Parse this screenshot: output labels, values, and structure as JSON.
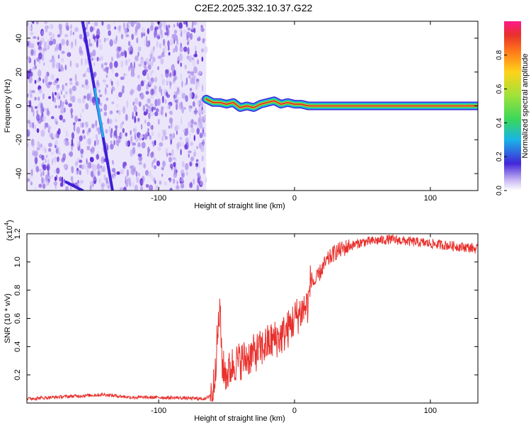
{
  "title": "C2E2.2025.332.10.37.G22",
  "chart_data": [
    {
      "type": "heatmap",
      "title": "C2E2.2025.332.10.37.G22",
      "xlabel": "Height of straight line (km)",
      "ylabel": "Frequency (Hz)",
      "xlim": [
        -197,
        135
      ],
      "ylim": [
        -50,
        50
      ],
      "xticks": [
        -100,
        0,
        100
      ],
      "xtick_labels": [
        "-100",
        "0",
        "100"
      ],
      "yticks": [
        -40,
        -20,
        0,
        20,
        40
      ],
      "ytick_labels": [
        "-40",
        "-20",
        "0",
        "20",
        "40"
      ],
      "noise_region_x": [
        -197,
        -65
      ],
      "signal_trace": {
        "x": [
          -65,
          -60,
          -55,
          -50,
          -45,
          -40,
          -35,
          -30,
          -25,
          -20,
          -15,
          -10,
          -5,
          0,
          5,
          10,
          135
        ],
        "y": [
          4,
          2,
          2,
          1,
          2,
          -1,
          0,
          -1,
          1,
          2,
          3,
          1,
          2,
          1,
          1,
          0,
          0
        ]
      },
      "spurious_lines": [
        {
          "x": [
            -156,
            -134
          ],
          "y": [
            50,
            -50
          ]
        },
        {
          "x": [
            -168,
            -156
          ],
          "y": [
            -45,
            -50
          ]
        }
      ],
      "colorbar": {
        "label": "Normalized spectral amplitude",
        "range": [
          0,
          1
        ],
        "ticks": [
          0.0,
          0.2,
          0.4,
          0.6,
          0.8
        ],
        "tick_labels": [
          "0.0",
          "0.2",
          "0.4",
          "0.6",
          "0.8"
        ]
      }
    },
    {
      "type": "line",
      "xlabel": "Height of straight line (km)",
      "ylabel": "SNR (10 * v/v)",
      "yscale_label": "(x10",
      "yscale_exp": "4",
      "yscale_close": ")",
      "xlim": [
        -197,
        135
      ],
      "ylim": [
        0,
        1.2
      ],
      "xticks": [
        -100,
        0,
        100
      ],
      "xtick_labels": [
        "-100",
        "0",
        "100"
      ],
      "yticks": [
        0.2,
        0.4,
        0.6,
        0.8,
        1.0,
        1.2
      ],
      "ytick_labels": [
        "0.2",
        "0.4",
        "0.6",
        "0.8",
        "1.0",
        "1.2"
      ],
      "series": [
        {
          "name": "SNR",
          "color": "#e8302c",
          "x": [
            -197,
            -180,
            -160,
            -140,
            -130,
            -120,
            -100,
            -80,
            -65,
            -60,
            -58,
            -55,
            -53,
            -50,
            -45,
            -40,
            -35,
            -30,
            -25,
            -20,
            -15,
            -10,
            -5,
            0,
            5,
            10,
            12,
            15,
            20,
            25,
            30,
            40,
            50,
            60,
            70,
            80,
            90,
            100,
            110,
            120,
            130,
            135
          ],
          "values": [
            0.03,
            0.04,
            0.05,
            0.06,
            0.05,
            0.04,
            0.04,
            0.035,
            0.03,
            0.08,
            0.3,
            0.66,
            0.25,
            0.2,
            0.28,
            0.3,
            0.32,
            0.35,
            0.38,
            0.42,
            0.45,
            0.47,
            0.52,
            0.6,
            0.65,
            0.7,
            0.88,
            0.85,
            0.95,
            1.02,
            1.07,
            1.11,
            1.14,
            1.15,
            1.16,
            1.15,
            1.14,
            1.13,
            1.12,
            1.11,
            1.1,
            1.09
          ]
        }
      ]
    }
  ]
}
